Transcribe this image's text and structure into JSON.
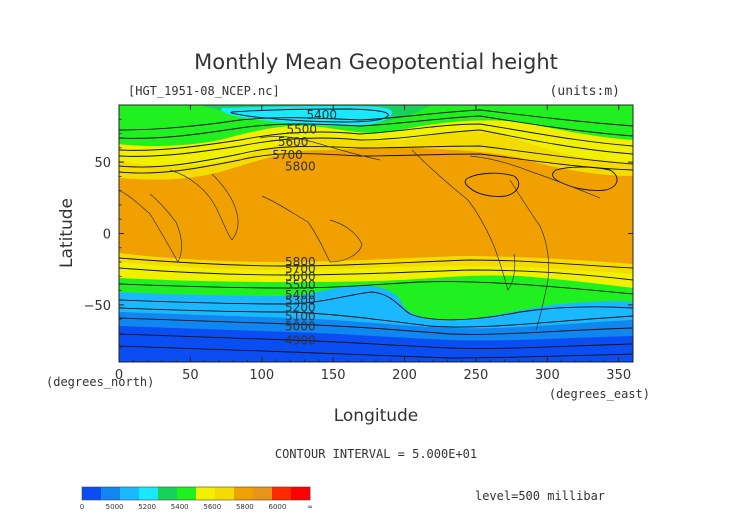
{
  "chart_data": {
    "type": "heatmap",
    "title": "Monthly Mean Geopotential height",
    "file_label": "[HGT_1951-08_NCEP.nc]",
    "units_label": "(units:m)",
    "xlabel": "Longitude",
    "ylabel": "Latitude",
    "x_unit_label": "(degrees_east)",
    "y_unit_label": "(degrees_north)",
    "xlim": [
      0,
      360
    ],
    "ylim": [
      -90,
      90
    ],
    "x_ticks": [
      0,
      50,
      100,
      150,
      200,
      250,
      300,
      350
    ],
    "y_ticks": [
      50,
      0,
      -50
    ],
    "y_tick_labels": [
      "50",
      "0",
      "−50"
    ],
    "contour_interval_text": "CONTOUR INTERVAL = 5.000E+01",
    "level_text": "level=500 millibar",
    "contour_labels": [
      {
        "text": "5400",
        "lon": 142,
        "lat": 83
      },
      {
        "text": "5500",
        "lon": 128,
        "lat": 73
      },
      {
        "text": "5600",
        "lon": 122,
        "lat": 64
      },
      {
        "text": "5700",
        "lon": 118,
        "lat": 55
      },
      {
        "text": "5800",
        "lon": 127,
        "lat": 47
      },
      {
        "text": "5800",
        "lon": 127,
        "lat": -20
      },
      {
        "text": "5700",
        "lon": 127,
        "lat": -25
      },
      {
        "text": "5600",
        "lon": 127,
        "lat": -30
      },
      {
        "text": "5500",
        "lon": 127,
        "lat": -36
      },
      {
        "text": "5400",
        "lon": 127,
        "lat": -43
      },
      {
        "text": "5300",
        "lon": 127,
        "lat": -47
      },
      {
        "text": "5200",
        "lon": 127,
        "lat": -52
      },
      {
        "text": "5100",
        "lon": 127,
        "lat": -58
      },
      {
        "text": "5000",
        "lon": 127,
        "lat": -65
      },
      {
        "text": "4900",
        "lon": 127,
        "lat": -75
      }
    ],
    "colorbar": {
      "colors": [
        "#0a4df2",
        "#0f86f0",
        "#1ab8ff",
        "#19e8ff",
        "#16d25a",
        "#20f020",
        "#f0f000",
        "#f5dc00",
        "#f0a000",
        "#e8941a",
        "#ff2a00",
        "#ff0000"
      ],
      "tick_labels": [
        "0",
        "5000",
        "5200",
        "5400",
        "5600",
        "5800",
        "6000",
        "∞"
      ]
    },
    "bands": [
      {
        "band": "5400-5500",
        "color": "#19e8ff"
      },
      {
        "band": "5500-5600",
        "color": "#16d25a"
      },
      {
        "band": "5600-5700",
        "color": "#f0f000"
      },
      {
        "band": "5700-5800",
        "color": "#f5dc00"
      },
      {
        "band": ">5800",
        "color": "#f0a000"
      },
      {
        "band": "5300-5400",
        "color": "#1ab8ff"
      },
      {
        "band": "5100-5200",
        "color": "#0f86f0"
      },
      {
        "band": "<5000",
        "color": "#0a4df2"
      }
    ]
  }
}
